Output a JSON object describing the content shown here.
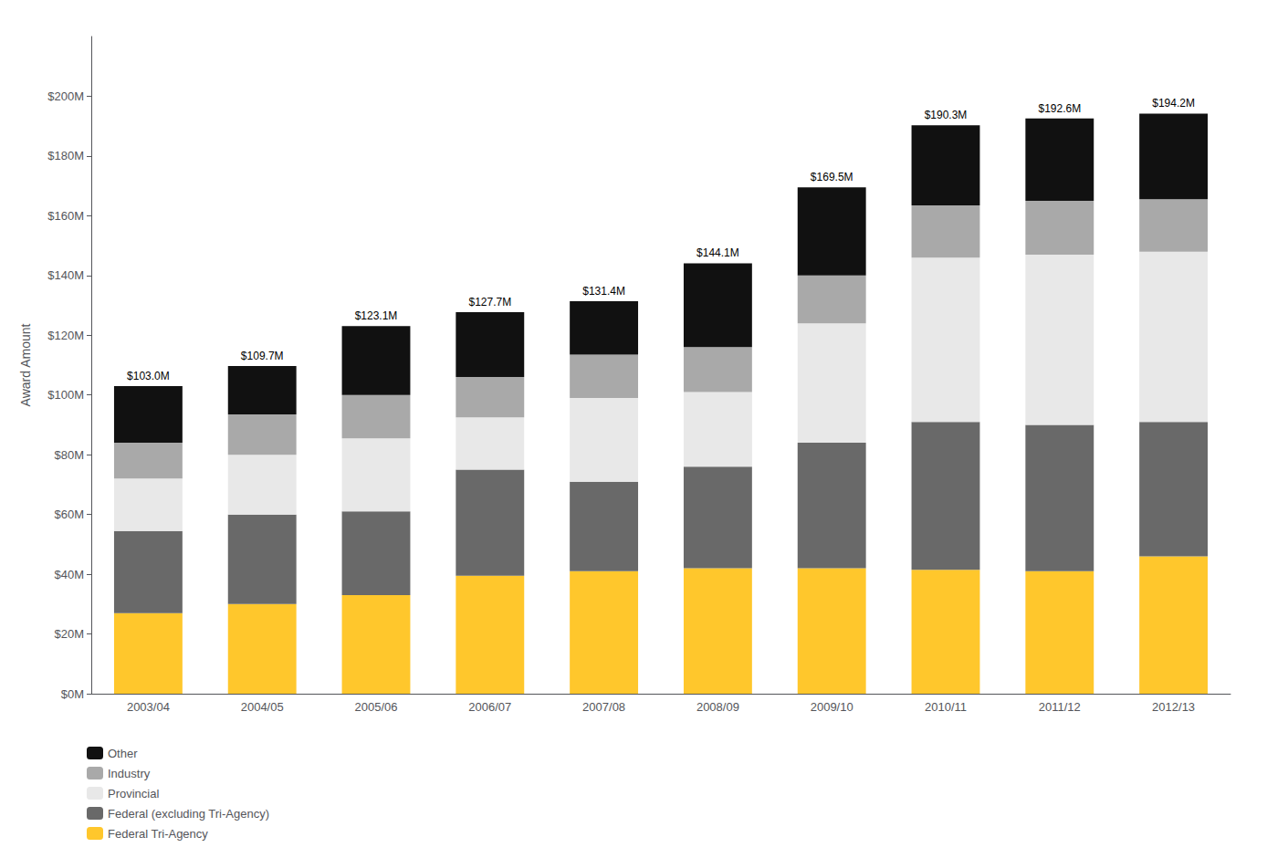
{
  "chart_data": {
    "type": "bar",
    "stacked": true,
    "grid": false,
    "legend": "bottom",
    "ylabel": "Award Amount",
    "categories": [
      "2003/04",
      "2004/05",
      "2005/06",
      "2006/07",
      "2007/08",
      "2008/09",
      "2009/10",
      "2010/11",
      "2011/12",
      "2012/13"
    ],
    "series": [
      {
        "name": "Federal Tri-Agency",
        "color": "#FFC72C",
        "values": [
          27.0,
          30.0,
          33.0,
          39.5,
          41.0,
          42.0,
          42.0,
          41.5,
          41.0,
          46.0
        ]
      },
      {
        "name": "Federal (excluding Tri-Agency)",
        "color": "#696969",
        "values": [
          27.5,
          30.0,
          28.0,
          35.5,
          30.0,
          34.0,
          42.0,
          49.5,
          49.0,
          45.0
        ]
      },
      {
        "name": "Provincial",
        "color": "#E8E8E8",
        "values": [
          17.5,
          20.0,
          24.5,
          17.5,
          28.0,
          25.0,
          40.0,
          55.0,
          57.0,
          57.0
        ]
      },
      {
        "name": "Industry",
        "color": "#A9A9A9",
        "values": [
          12.0,
          13.5,
          14.5,
          13.5,
          14.5,
          15.0,
          16.0,
          17.5,
          18.0,
          17.5
        ]
      },
      {
        "name": "Other",
        "color": "#111111",
        "values": [
          19.0,
          16.2,
          23.1,
          21.7,
          17.9,
          28.1,
          29.5,
          26.8,
          27.6,
          28.7
        ]
      }
    ],
    "totals": [
      103.0,
      109.7,
      123.1,
      127.7,
      131.4,
      144.1,
      169.5,
      190.3,
      192.6,
      194.2
    ],
    "total_labels": [
      "$103.0M",
      "$109.7M",
      "$123.1M",
      "$127.7M",
      "$131.4M",
      "$144.1M",
      "$169.5M",
      "$190.3M",
      "$192.6M",
      "$194.2M"
    ],
    "ylim": [
      0,
      220
    ],
    "yticks": [
      {
        "value": 0,
        "label": "$0M"
      },
      {
        "value": 20,
        "label": "$20M"
      },
      {
        "value": 40,
        "label": "$40M"
      },
      {
        "value": 60,
        "label": "$60M"
      },
      {
        "value": 80,
        "label": "$80M"
      },
      {
        "value": 100,
        "label": "$100M"
      },
      {
        "value": 120,
        "label": "$120M"
      },
      {
        "value": 140,
        "label": "$140M"
      },
      {
        "value": 160,
        "label": "$160M"
      },
      {
        "value": 180,
        "label": "$180M"
      },
      {
        "value": 200,
        "label": "$200M"
      }
    ]
  }
}
